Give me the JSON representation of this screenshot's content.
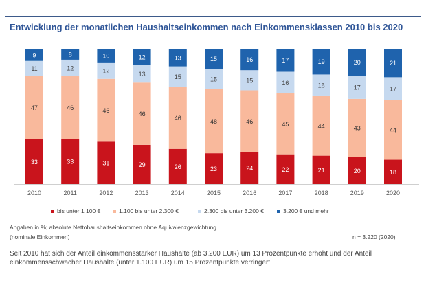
{
  "header": {
    "title": "Entwicklung der monatlichen Haushaltseinkommen nach Einkommensklassen 2010 bis 2020"
  },
  "chart_data": {
    "type": "bar",
    "stacked": true,
    "title": "Entwicklung der monatlichen Haushaltseinkommen nach Einkommensklassen 2010 bis 2020",
    "xlabel": "",
    "ylabel": "Angaben in %",
    "ylim": [
      0,
      100
    ],
    "grid": false,
    "legend_position": "bottom",
    "categories": [
      "2010",
      "2011",
      "2012",
      "2013",
      "2014",
      "2015",
      "2016",
      "2017",
      "2018",
      "2019",
      "2020"
    ],
    "series": [
      {
        "name": "bis unter 1 100 €",
        "color": "#c9141c",
        "label_color": "#ffffff",
        "values": [
          33,
          33,
          31,
          29,
          26,
          23,
          24,
          22,
          21,
          20,
          18
        ]
      },
      {
        "name": "1.100 bis unter 2.300 €",
        "color": "#f9b99c",
        "label_color": "#333333",
        "values": [
          47,
          46,
          46,
          46,
          46,
          48,
          46,
          45,
          44,
          43,
          44
        ]
      },
      {
        "name": "2.300 bis unter 3.200 €",
        "color": "#c6d9ef",
        "label_color": "#444444",
        "values": [
          11,
          12,
          12,
          13,
          15,
          15,
          15,
          16,
          16,
          17,
          17
        ]
      },
      {
        "name": "3.200 € und mehr",
        "color": "#1f63ad",
        "label_color": "#ffffff",
        "values": [
          9,
          8,
          10,
          12,
          13,
          15,
          16,
          17,
          19,
          20,
          21
        ]
      }
    ]
  },
  "notes": {
    "line1": "Angaben in %; absolute Nettohaushaltseinkommen ohne Äquivalenzgewichtung",
    "line2": "(nominale Einkommen)",
    "sample": "n = 3.220 (2020)"
  },
  "summary": "Seit 2010 hat sich der Anteil einkommensstarker Haushalte (ab 3.200 EUR) um 13 Prozentpunkte erhöht und der Anteil einkommensschwacher Haushalte (unter 1.100 EUR) um 15 Prozentpunkte verringert."
}
